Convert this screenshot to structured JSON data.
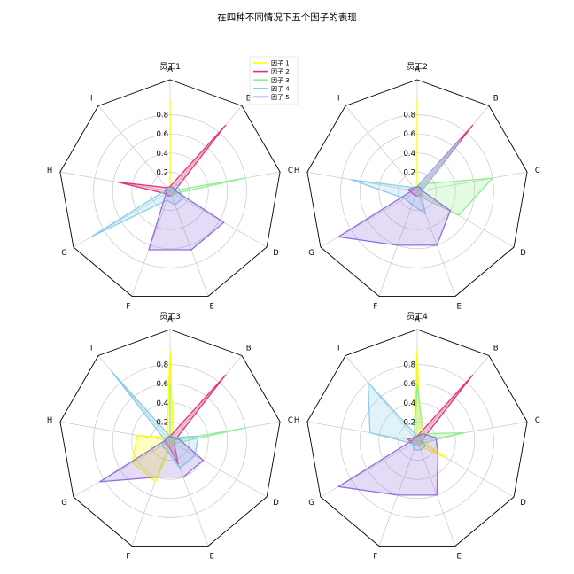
{
  "figure": {
    "title": "在四种不同情况下五个因子的表现"
  },
  "legend": {
    "placement": "top-center",
    "items": [
      {
        "label": "因子 1",
        "color": "#FFFF00"
      },
      {
        "label": "因子 2",
        "color": "#E8307A"
      },
      {
        "label": "因子 3",
        "color": "#90EE90"
      },
      {
        "label": "因子 4",
        "color": "#87CEEB"
      },
      {
        "label": "因子 5",
        "color": "#9370DB"
      }
    ]
  },
  "chart_data": [
    {
      "type": "radar",
      "title": "员工1",
      "axes": [
        "A",
        "B",
        "C",
        "D",
        "E",
        "F",
        "G",
        "H",
        "I"
      ],
      "rlim": [
        0,
        1.0
      ],
      "rticks": [
        "0.2",
        "0.4",
        "0.6",
        "0.8"
      ],
      "rtick_values": [
        0.2,
        0.4,
        0.6,
        0.8
      ],
      "grid": true,
      "series": [
        {
          "name": "因子 1",
          "values": [
            0.95,
            0.0,
            0.0,
            0.0,
            0.0,
            0.0,
            0.0,
            0.0,
            0.0
          ]
        },
        {
          "name": "因子 2",
          "values": [
            0.05,
            0.9,
            0.05,
            0.05,
            0.05,
            0.05,
            0.05,
            0.55,
            0.05
          ]
        },
        {
          "name": "因子 3",
          "values": [
            0.0,
            0.0,
            0.8,
            0.05,
            0.05,
            0.0,
            0.0,
            0.05,
            0.0
          ]
        },
        {
          "name": "因子 4",
          "values": [
            0.0,
            0.1,
            0.1,
            0.15,
            0.15,
            0.1,
            0.95,
            0.05,
            0.05
          ]
        },
        {
          "name": "因子 5",
          "values": [
            0.05,
            0.05,
            0.05,
            0.65,
            0.65,
            0.65,
            0.05,
            0.05,
            0.05
          ]
        }
      ]
    },
    {
      "type": "radar",
      "title": "员工2",
      "axes": [
        "A",
        "B",
        "C",
        "D",
        "E",
        "F",
        "G",
        "H",
        "I"
      ],
      "rlim": [
        0,
        1.0
      ],
      "rticks": [
        "0.2",
        "0.4",
        "0.6",
        "0.8"
      ],
      "rtick_values": [
        0.2,
        0.4,
        0.6,
        0.8
      ],
      "grid": true,
      "series": [
        {
          "name": "因子 1",
          "values": [
            0.95,
            0.0,
            0.0,
            0.0,
            0.0,
            0.0,
            0.0,
            0.0,
            0.0
          ]
        },
        {
          "name": "因子 2",
          "values": [
            0.05,
            0.9,
            0.05,
            0.05,
            0.05,
            0.05,
            0.05,
            0.1,
            0.05
          ]
        },
        {
          "name": "因子 3",
          "values": [
            0.05,
            0.1,
            0.8,
            0.5,
            0.05,
            0.0,
            0.0,
            0.05,
            0.0
          ]
        },
        {
          "name": "因子 4",
          "values": [
            0.05,
            0.7,
            0.05,
            0.05,
            0.25,
            0.15,
            0.15,
            0.7,
            0.05
          ]
        },
        {
          "name": "因子 5",
          "values": [
            0.05,
            0.05,
            0.05,
            0.4,
            0.6,
            0.6,
            0.95,
            0.05,
            0.05
          ]
        }
      ]
    },
    {
      "type": "radar",
      "title": "员工3",
      "axes": [
        "A",
        "B",
        "C",
        "D",
        "E",
        "F",
        "G",
        "H",
        "I"
      ],
      "rlim": [
        0,
        1.0
      ],
      "rticks": [
        "0.2",
        "0.4",
        "0.6",
        "0.8"
      ],
      "rtick_values": [
        0.2,
        0.4,
        0.6,
        0.8
      ],
      "grid": true,
      "series": [
        {
          "name": "因子 1",
          "values": [
            0.95,
            0.05,
            0.05,
            0.05,
            0.05,
            0.45,
            0.45,
            0.35,
            0.05
          ]
        },
        {
          "name": "因子 2",
          "values": [
            0.05,
            0.9,
            0.05,
            0.05,
            0.25,
            0.05,
            0.05,
            0.05,
            0.05
          ]
        },
        {
          "name": "因子 3",
          "values": [
            0.6,
            0.0,
            0.8,
            0.05,
            0.0,
            0.0,
            0.0,
            0.05,
            0.0
          ]
        },
        {
          "name": "因子 4",
          "values": [
            0.05,
            0.05,
            0.3,
            0.3,
            0.3,
            0.1,
            0.1,
            0.05,
            0.95
          ]
        },
        {
          "name": "因子 5",
          "values": [
            0.05,
            0.05,
            0.1,
            0.4,
            0.4,
            0.4,
            0.85,
            0.05,
            0.05
          ]
        }
      ]
    },
    {
      "type": "radar",
      "title": "员工4",
      "axes": [
        "A",
        "B",
        "C",
        "D",
        "E",
        "F",
        "G",
        "H",
        "I"
      ],
      "rlim": [
        0,
        1.0
      ],
      "rticks": [
        "0.2",
        "0.4",
        "0.6",
        "0.8"
      ],
      "rtick_values": [
        0.2,
        0.4,
        0.6,
        0.8
      ],
      "grid": true,
      "series": [
        {
          "name": "因子 1",
          "values": [
            0.95,
            0.05,
            0.05,
            0.35,
            0.05,
            0.05,
            0.05,
            0.05,
            0.05
          ]
        },
        {
          "name": "因子 2",
          "values": [
            0.05,
            0.9,
            0.05,
            0.05,
            0.05,
            0.05,
            0.05,
            0.1,
            0.05
          ]
        },
        {
          "name": "因子 3",
          "values": [
            0.6,
            0.1,
            0.5,
            0.05,
            0.05,
            0.05,
            0.05,
            0.05,
            0.05
          ]
        },
        {
          "name": "因子 4",
          "values": [
            0.05,
            0.05,
            0.05,
            0.1,
            0.1,
            0.1,
            0.05,
            0.5,
            0.8
          ]
        },
        {
          "name": "因子 5",
          "values": [
            0.05,
            0.1,
            0.2,
            0.25,
            0.6,
            0.6,
            0.95,
            0.05,
            0.05
          ]
        }
      ]
    }
  ]
}
